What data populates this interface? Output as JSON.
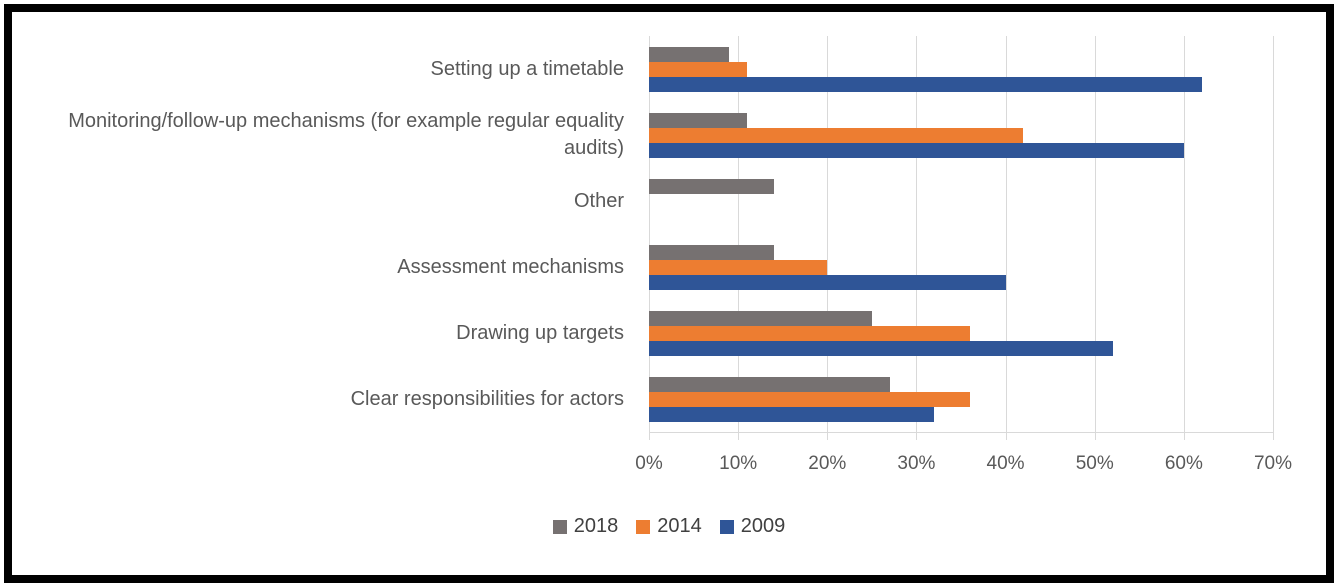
{
  "figure": {
    "background": "#FFFFFF",
    "border_color": "#000000"
  },
  "chart_data": {
    "type": "bar",
    "orientation": "horizontal",
    "title": "",
    "xlabel": "",
    "ylabel": "",
    "categories": [
      "Setting up a timetable",
      "Monitoring/follow-up mechanisms (for example regular equality audits)",
      "Other",
      "Assessment mechanisms",
      "Drawing up targets",
      "Clear responsibilities for actors"
    ],
    "series": [
      {
        "name": "2018",
        "color": "#767171",
        "values": [
          9,
          11,
          14,
          14,
          25,
          27
        ]
      },
      {
        "name": "2014",
        "color": "#ED7D31",
        "values": [
          11,
          42,
          0,
          20,
          36,
          36
        ]
      },
      {
        "name": "2009",
        "color": "#2F5597",
        "values": [
          62,
          60,
          0,
          40,
          52,
          32
        ]
      }
    ],
    "xlim": [
      0,
      70
    ],
    "x_ticks": [
      "0%",
      "10%",
      "20%",
      "30%",
      "40%",
      "50%",
      "60%",
      "70%"
    ],
    "grid": true,
    "gridline_color": "#D9D9D9",
    "axis_line_color": "#D9D9D9",
    "axis_text_color": "#595959",
    "legend_text_color": "#404040",
    "legend_position": "bottom"
  }
}
